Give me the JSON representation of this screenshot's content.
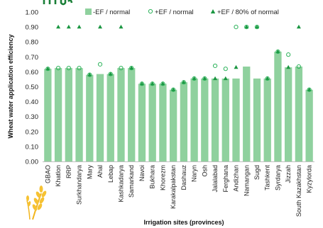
{
  "chart_data": {
    "type": "bar",
    "title": "",
    "xlabel": "Irrigation sites (provinces)",
    "ylabel": "Wheat water application efficiency",
    "ylim": [
      0,
      1
    ],
    "yticks": [
      "0.00",
      "0.10",
      "0.20",
      "0.30",
      "0.40",
      "0.50",
      "0.60",
      "0.70",
      "0.80",
      "0.90",
      "1.00"
    ],
    "legend_position": "top",
    "grid": false,
    "categories": [
      "GBAO",
      "Khatlon",
      "RRP",
      "Surkhandarya",
      "Mary",
      "Ahal",
      "Lebap",
      "Kashkadarya",
      "Samarkand",
      "Navoi",
      "Bukhara",
      "Khorezm",
      "Karakalpakstan",
      "Dashauz",
      "Naryn",
      "Osh",
      "Jalalabad",
      "Ferghana",
      "Andizhan",
      "Namangan",
      "Sugd",
      "Tashkent",
      "Syrdarya",
      "Jizzah",
      "South Kazakhstan",
      "Kyzylorda"
    ],
    "series": [
      {
        "name": "-EF / normal",
        "kind": "bar",
        "color": "#8fd19e",
        "values": [
          0.62,
          0.625,
          0.625,
          0.625,
          0.58,
          0.585,
          0.585,
          0.625,
          0.625,
          0.52,
          0.52,
          0.52,
          0.48,
          0.53,
          0.555,
          0.555,
          0.555,
          0.555,
          0.555,
          0.635,
          0.555,
          0.555,
          0.735,
          0.63,
          0.635,
          0.48
        ]
      },
      {
        "name": "+EF / normal",
        "kind": "circle",
        "color": "#2db35b",
        "values": [
          0.62,
          0.625,
          0.625,
          0.625,
          0.58,
          0.65,
          0.585,
          0.625,
          0.625,
          0.52,
          0.52,
          0.52,
          0.48,
          0.53,
          0.555,
          0.555,
          0.64,
          0.62,
          0.9,
          0.9,
          0.9,
          0.555,
          0.735,
          0.715,
          0.635,
          0.48
        ]
      },
      {
        "name": "+EF / 80% of normal",
        "kind": "triangle",
        "color": "#1a9641",
        "values": [
          0.62,
          0.9,
          0.9,
          0.9,
          0.58,
          0.9,
          0.585,
          0.9,
          0.625,
          0.52,
          0.52,
          0.52,
          0.48,
          0.53,
          0.555,
          0.555,
          0.555,
          0.555,
          0.63,
          0.9,
          0.9,
          0.555,
          0.735,
          0.63,
          0.9,
          0.48
        ]
      }
    ]
  }
}
